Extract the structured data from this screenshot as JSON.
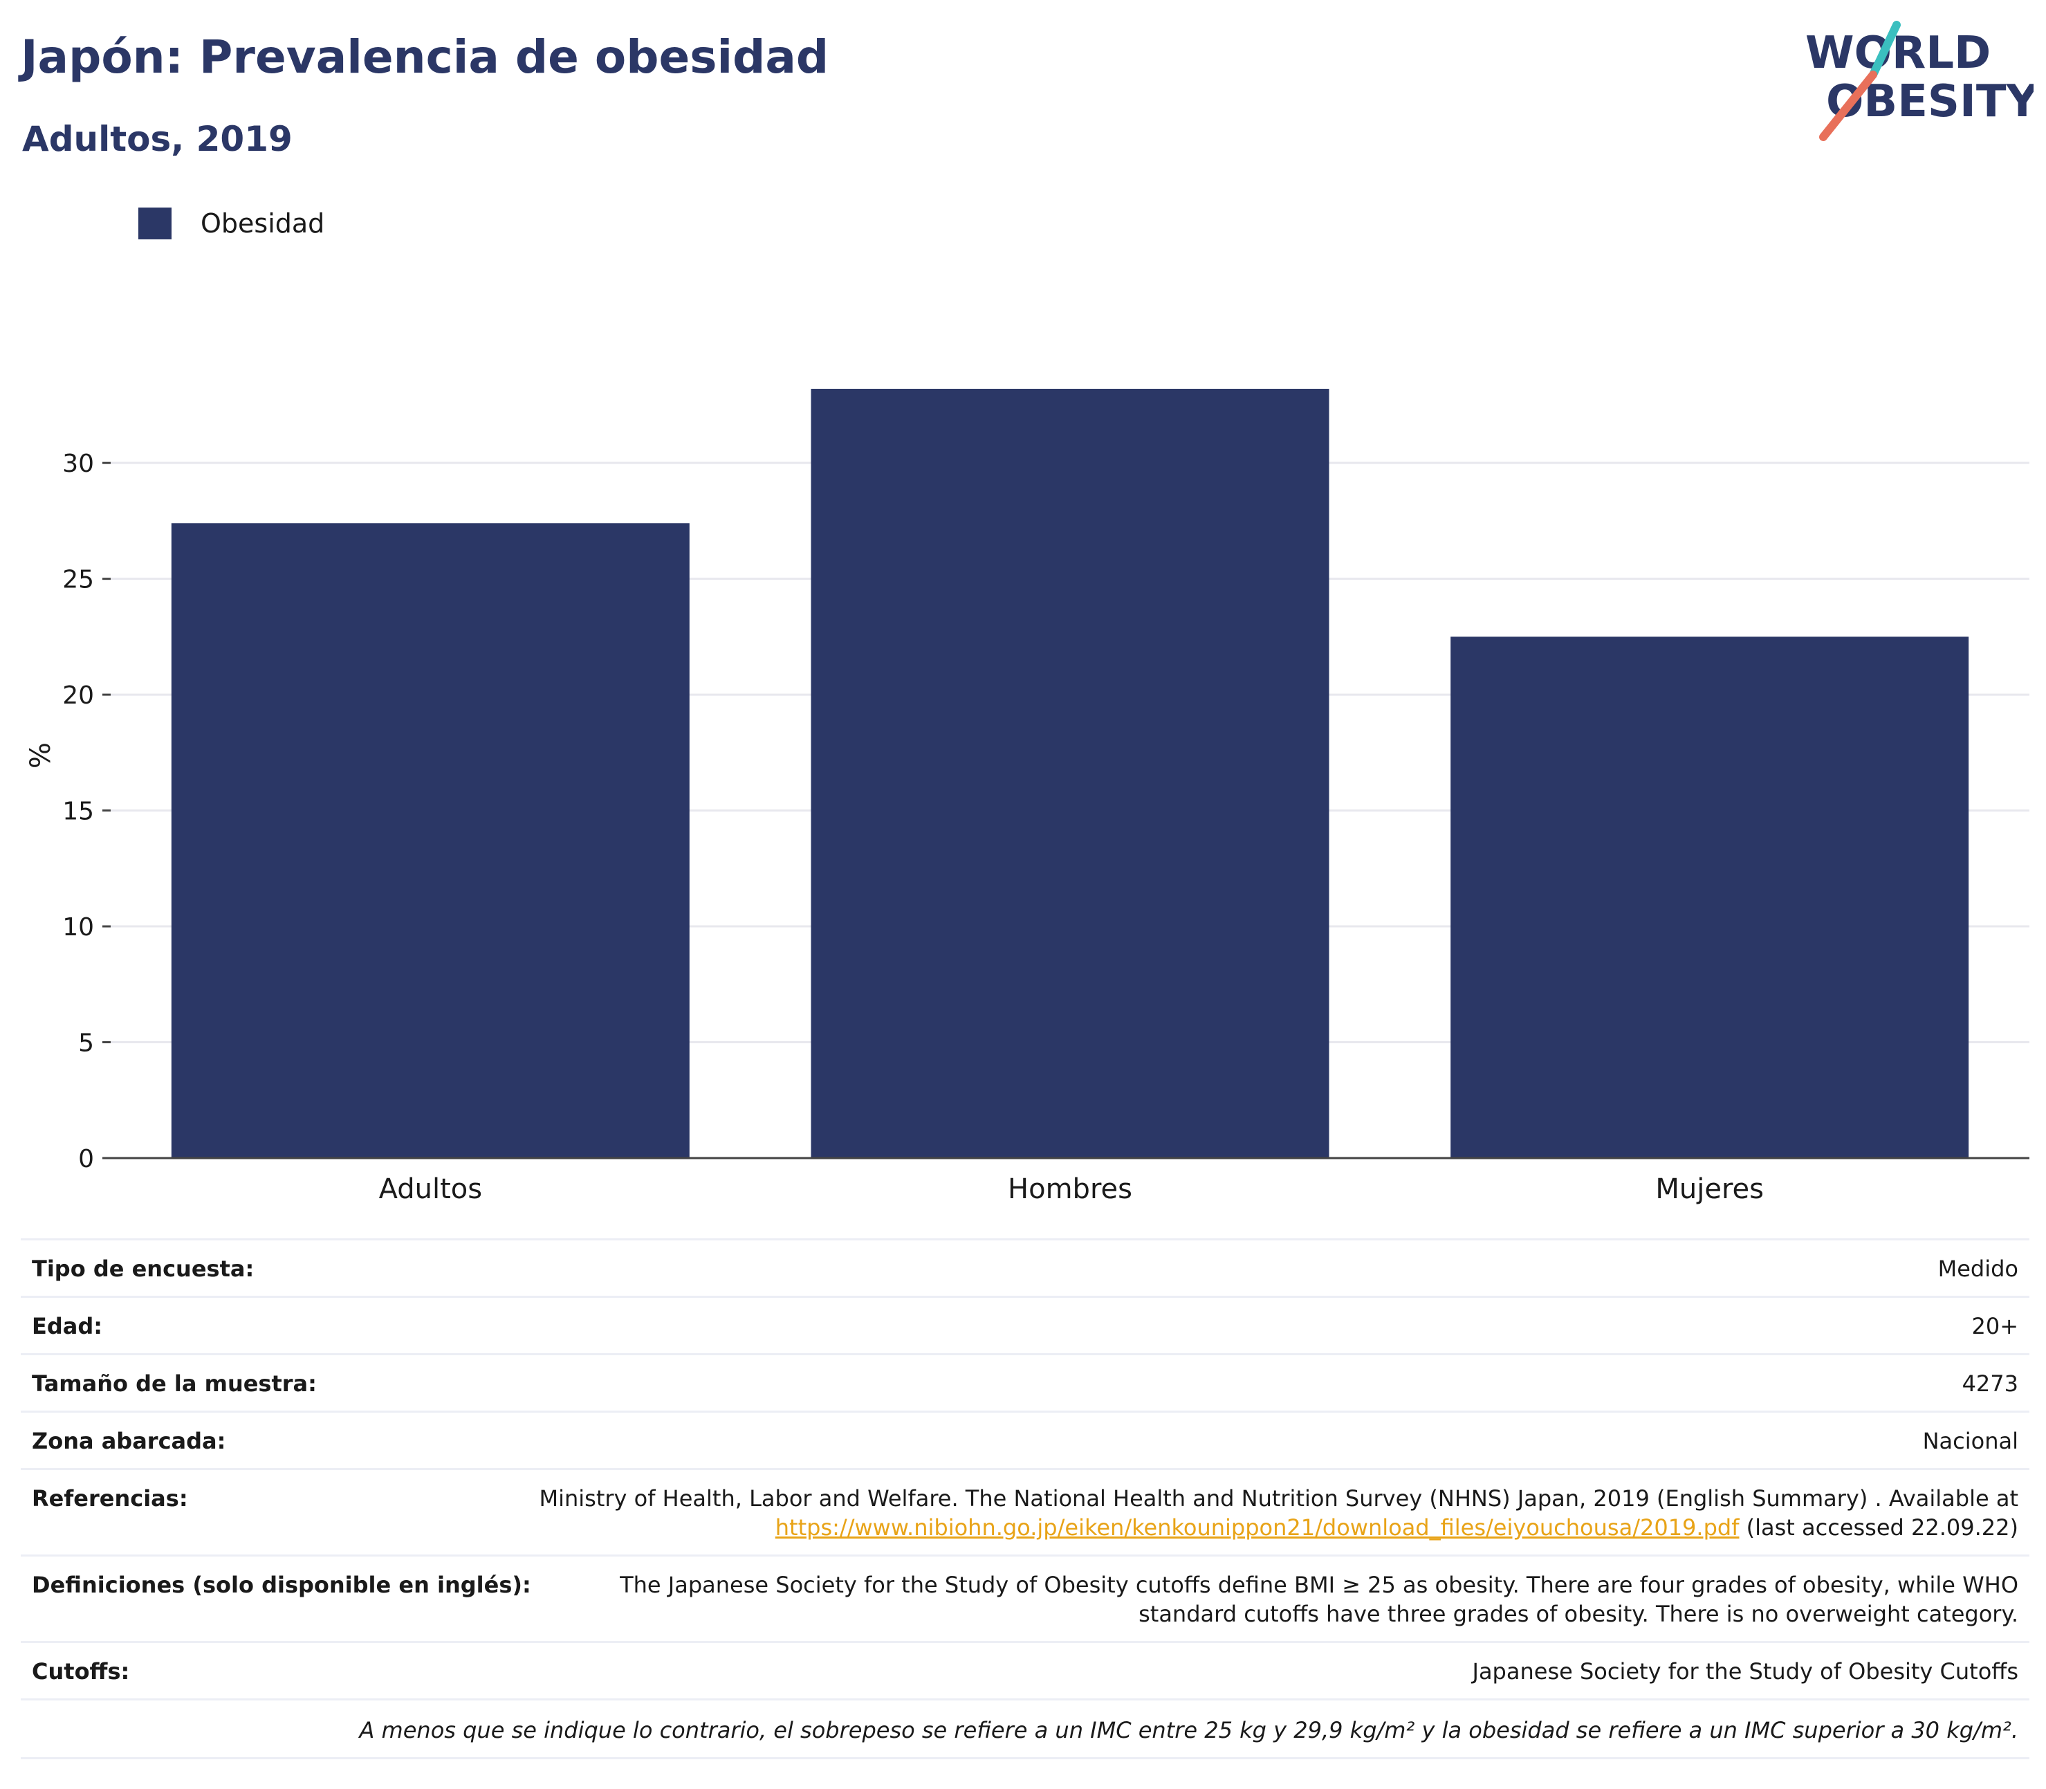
{
  "header": {
    "title": "Japón: Prevalencia de obesidad",
    "subtitle": "Adultos, 2019"
  },
  "logo": {
    "line1": "WORLD",
    "line2": "OBESITY",
    "accent_teal": "#3bbfbf",
    "accent_coral": "#e8705a",
    "text_color": "#2b3766"
  },
  "legend": {
    "label": "Obesidad",
    "color": "#2b3766"
  },
  "chart_data": {
    "type": "bar",
    "categories": [
      "Adultos",
      "Hombres",
      "Mujeres"
    ],
    "series": [
      {
        "name": "Obesidad",
        "values": [
          27.4,
          33.2,
          22.5
        ],
        "color": "#2b3766"
      }
    ],
    "xlabel": "",
    "ylabel": "%",
    "ylim": [
      0,
      33.2
    ],
    "yticks": [
      0,
      5,
      10,
      15,
      20,
      25,
      30
    ],
    "grid": true,
    "legend_position": "top-left"
  },
  "info": {
    "rows": [
      {
        "label": "Tipo de encuesta:",
        "value": "Medido"
      },
      {
        "label": "Edad:",
        "value": "20+"
      },
      {
        "label": "Tamaño de la muestra:",
        "value": "4273"
      },
      {
        "label": "Zona abarcada:",
        "value": "Nacional"
      }
    ],
    "references": {
      "label": "Referencias:",
      "text": "Ministry of Health, Labor and Welfare. The National Health and Nutrition Survey (NHNS) Japan, 2019 (English Summary) . Available at",
      "link": "https://www.nibiohn.go.jp/eiken/kenkounippon21/download_files/eiyouchousa/2019.pdf",
      "suffix": " (last accessed 22.09.22)"
    },
    "definitions": {
      "label": "Definiciones (solo disponible en inglés):",
      "value": "The Japanese Society for the Study of Obesity cutoffs define BMI ≥ 25 as obesity. There are four grades of obesity, while WHO standard cutoffs have three grades of obesity. There is no overweight category."
    },
    "cutoffs": {
      "label": "Cutoffs:",
      "value": "Japanese Society for the Study of Obesity Cutoffs"
    },
    "footnote": "A menos que se indique lo contrario, el sobrepeso se refiere a un IMC entre 25 kg y 29,9 kg/m² y la obesidad se refiere a un IMC superior a 30 kg/m²."
  }
}
